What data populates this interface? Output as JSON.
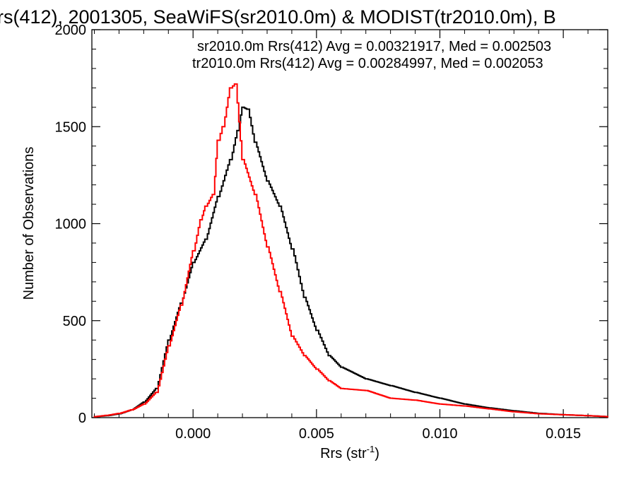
{
  "chart_data": {
    "type": "line",
    "title": "rs(412), 2001305, SeaWiFS(sr2010.0m) & MODIST(tr2010.0m), B",
    "xlabel": "Rrs (str",
    "xlabel_sup": "-1",
    "xlabel_close": ")",
    "ylabel": "Number of Observations",
    "xlim": [
      -0.0041,
      0.0168
    ],
    "ylim": [
      0,
      2000
    ],
    "xticks": [
      {
        "value": 0.0,
        "label": "0.000"
      },
      {
        "value": 0.005,
        "label": "0.005"
      },
      {
        "value": 0.01,
        "label": "0.010"
      },
      {
        "value": 0.015,
        "label": "0.015"
      }
    ],
    "yticks": [
      {
        "value": 0,
        "label": "0"
      },
      {
        "value": 500,
        "label": "500"
      },
      {
        "value": 1000,
        "label": "1000"
      },
      {
        "value": 1500,
        "label": "1500"
      },
      {
        "value": 2000,
        "label": "2000"
      }
    ],
    "grid": false,
    "annotations": [
      {
        "text": "sr2010.0m Rrs(412) Avg = 0.00321917, Med = 0.002503",
        "color": "#000000"
      },
      {
        "text": "tr2010.0m Rrs(412) Avg = 0.00284997, Med = 0.002053",
        "color": "#ff0000"
      }
    ],
    "series": [
      {
        "color": "#000000",
        "x": [
          -0.004,
          -0.0035,
          -0.003,
          -0.0025,
          -0.002,
          -0.0015,
          -0.001,
          -0.0005,
          0.0,
          0.0005,
          0.001,
          0.0015,
          0.0018,
          0.002,
          0.0022,
          0.0025,
          0.003,
          0.0035,
          0.004,
          0.0045,
          0.005,
          0.0055,
          0.006,
          0.007,
          0.008,
          0.009,
          0.01,
          0.011,
          0.012,
          0.013,
          0.014,
          0.015,
          0.016,
          0.0168
        ],
        "y": [
          5,
          10,
          20,
          40,
          80,
          150,
          400,
          590,
          800,
          920,
          1140,
          1330,
          1480,
          1600,
          1590,
          1420,
          1220,
          1090,
          870,
          620,
          450,
          320,
          260,
          200,
          165,
          130,
          100,
          70,
          50,
          35,
          22,
          15,
          10,
          5
        ]
      },
      {
        "color": "#ff0000",
        "x": [
          -0.004,
          -0.0035,
          -0.003,
          -0.0025,
          -0.002,
          -0.0015,
          -0.001,
          -0.0005,
          0.0,
          0.0003,
          0.0005,
          0.0008,
          0.001,
          0.0012,
          0.0015,
          0.0017,
          0.002,
          0.0025,
          0.003,
          0.0035,
          0.004,
          0.0045,
          0.005,
          0.0055,
          0.006,
          0.007,
          0.008,
          0.009,
          0.01,
          0.011,
          0.012,
          0.013,
          0.014,
          0.015,
          0.016,
          0.0168
        ],
        "y": [
          5,
          12,
          22,
          40,
          70,
          130,
          370,
          580,
          860,
          1020,
          1090,
          1150,
          1430,
          1500,
          1700,
          1720,
          1330,
          1150,
          880,
          650,
          420,
          320,
          250,
          190,
          150,
          140,
          100,
          90,
          70,
          60,
          45,
          30,
          20,
          15,
          10,
          5
        ]
      }
    ]
  }
}
